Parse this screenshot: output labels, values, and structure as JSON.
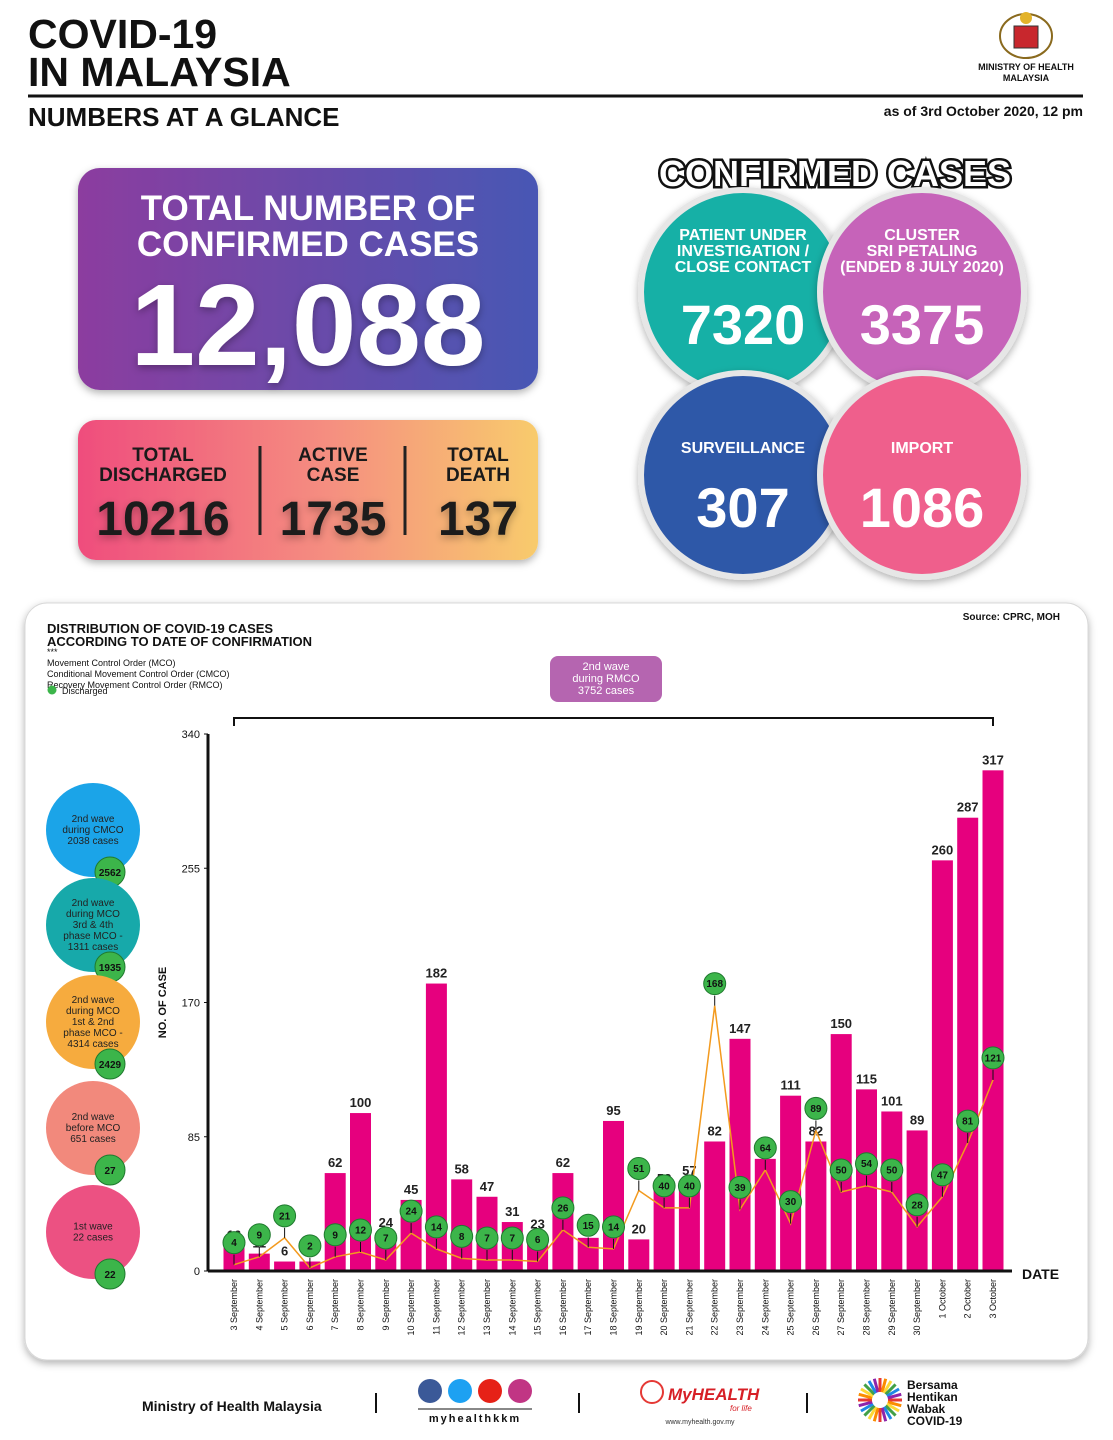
{
  "header": {
    "title_lines": [
      "COVID-19",
      "IN MALAYSIA"
    ],
    "subtitle": "NUMBERS AT A GLANCE",
    "ministry_lines": [
      "MINISTRY OF HEALTH",
      "MALAYSIA"
    ],
    "as_of": "as of 3rd October 2020, 12 pm"
  },
  "total": {
    "label_lines": [
      "TOTAL NUMBER OF",
      "CONFIRMED CASES"
    ],
    "value": "12,088"
  },
  "summary": [
    {
      "label_lines": [
        "TOTAL",
        "DISCHARGED"
      ],
      "value": "10216"
    },
    {
      "label_lines": [
        "ACTIVE",
        "CASE"
      ],
      "value": "1735"
    },
    {
      "label_lines": [
        "TOTAL",
        "DEATH"
      ],
      "value": "137"
    }
  ],
  "confirmed": {
    "title": "CONFIRMED CASES",
    "circles": [
      {
        "label_lines": [
          "PATIENT UNDER",
          "INVESTIGATION /",
          "CLOSE CONTACT"
        ],
        "value": "7320",
        "color": "#14b0a6"
      },
      {
        "label_lines": [
          "CLUSTER",
          "SRI PETALING",
          "(ENDED 8 JULY 2020)"
        ],
        "value": "3375",
        "color": "#c664b9"
      },
      {
        "label_lines": [
          "SURVEILLANCE"
        ],
        "value": "307",
        "color": "#2f59a8"
      },
      {
        "label_lines": [
          "IMPORT"
        ],
        "value": "1086",
        "color": "#ef5f8c"
      }
    ]
  },
  "chart_data": {
    "type": "bar",
    "title_lines": [
      "DISTRIBUTION OF COVID-19 CASES",
      "ACCORDING TO DATE OF CONFIRMATION"
    ],
    "notes": [
      "***",
      "Movement Control Order (MCO)",
      "Conditional Movement Control Order (CMCO)",
      "Recovery Movement Control Order (RMCO)"
    ],
    "source": "Source: CPRC, MOH",
    "ylabel": "NO. OF CASE",
    "xlabel": "DATE",
    "ylim": [
      0,
      340
    ],
    "yticks": [
      0,
      85,
      170,
      255,
      340
    ],
    "categories": [
      "3 September",
      "4 September",
      "5 September",
      "6 September",
      "7 September",
      "8 September",
      "9 September",
      "10 September",
      "11 September",
      "12 September",
      "13 September",
      "14 September",
      "15 September",
      "16 September",
      "17 September",
      "18 September",
      "19 September",
      "20 September",
      "21 September",
      "22 September",
      "23 September",
      "24 September",
      "25 September",
      "26 September",
      "27 September",
      "28 September",
      "29 September",
      "30 September",
      "1 October",
      "2 October",
      "3 October"
    ],
    "series": [
      {
        "type": "bar",
        "color": "#e6007e",
        "values": [
          16,
          11,
          6,
          6,
          62,
          100,
          24,
          45,
          182,
          58,
          47,
          31,
          23,
          62,
          21,
          95,
          20,
          52,
          57,
          82,
          147,
          71,
          111,
          82,
          150,
          115,
          101,
          89,
          260,
          287,
          317
        ]
      },
      {
        "type": "line",
        "name": "Discharged",
        "color": "#3cb54a",
        "line_color": "#f39a1e",
        "values": [
          4,
          9,
          21,
          2,
          9,
          12,
          7,
          24,
          14,
          8,
          7,
          7,
          6,
          26,
          15,
          14,
          51,
          40,
          40,
          168,
          39,
          64,
          30,
          89,
          50,
          54,
          50,
          28,
          47,
          81,
          121
        ]
      }
    ],
    "annotation": {
      "lines": [
        "2nd wave",
        "during RMCO",
        "3752 cases"
      ],
      "color": "#b565b0"
    },
    "side_groups": [
      {
        "lines": [
          "2nd wave",
          "during CMCO",
          "2038 cases"
        ],
        "discharged": "2562",
        "color": "#1ba4e8"
      },
      {
        "lines": [
          "2nd wave",
          "during MCO",
          "3rd & 4th",
          "phase MCO -",
          "1311 cases"
        ],
        "discharged": "1935",
        "color": "#17a9aa"
      },
      {
        "lines": [
          "2nd wave",
          "during MCO",
          "1st & 2nd",
          "phase MCO -",
          "4314 cases"
        ],
        "discharged": "2429",
        "color": "#f6ab3e"
      },
      {
        "lines": [
          "2nd wave",
          "before MCO",
          "651 cases"
        ],
        "discharged": "27",
        "color": "#f2897c"
      },
      {
        "lines": [
          "1st wave",
          "22 cases"
        ],
        "discharged": "22",
        "color": "#ec5182"
      }
    ]
  },
  "footer": {
    "ministry": "Ministry of Health Malaysia",
    "handle": "myhealthkkm",
    "brand": "MyHEALTH",
    "brand_tag": "for life",
    "url": "www.myhealth.gov.my",
    "slogan_lines": [
      "Bersama",
      "Hentikan",
      "Wabak",
      "COVID-19"
    ]
  }
}
